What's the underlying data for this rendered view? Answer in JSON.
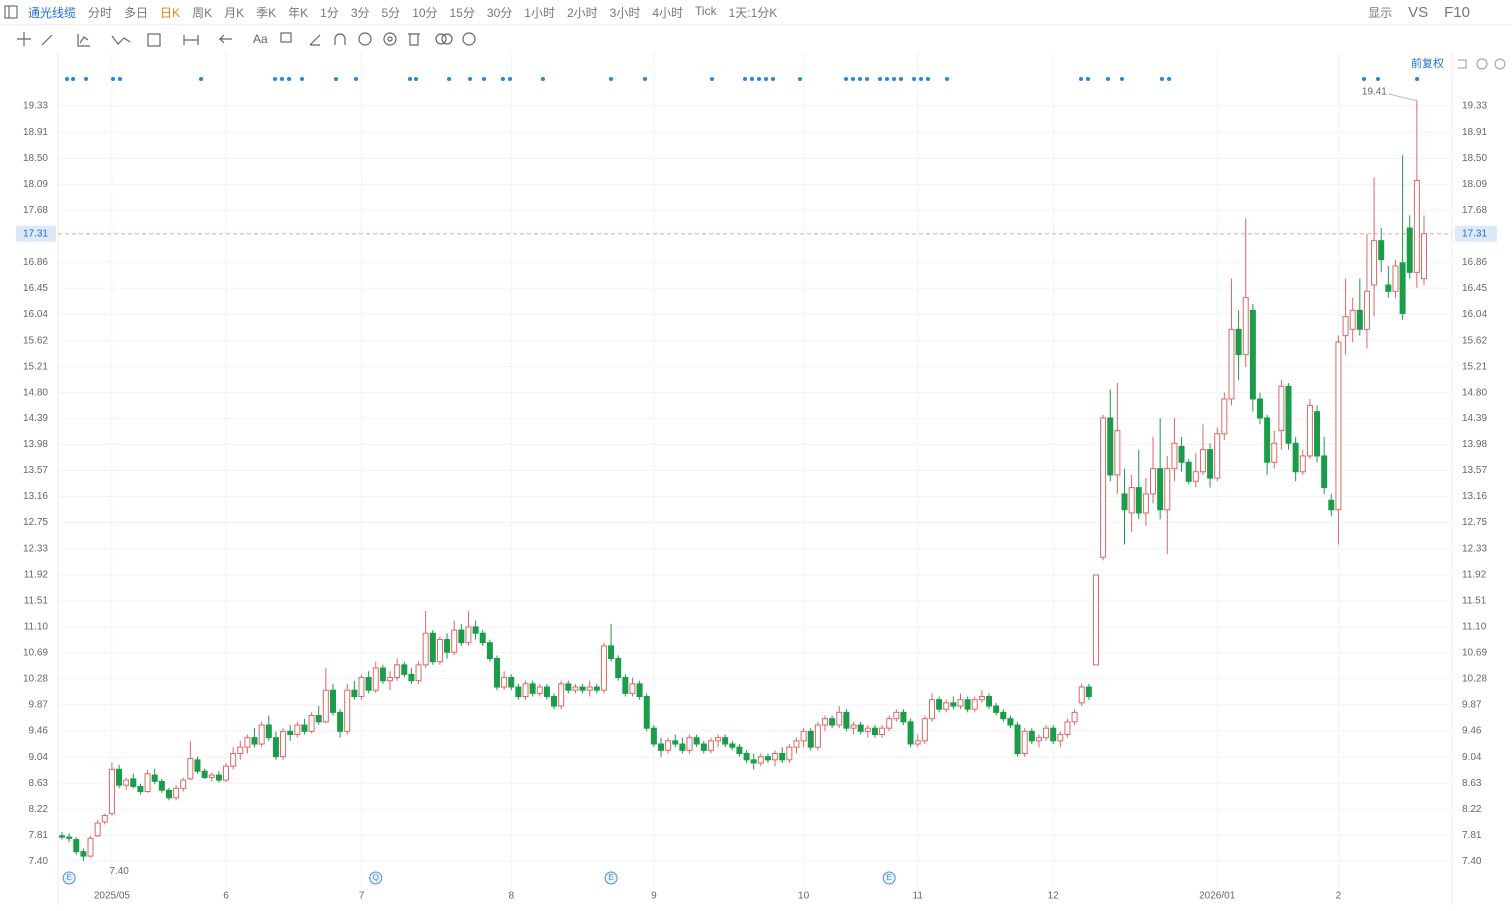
{
  "toolbar": {
    "stock": "通光线缆",
    "periods": [
      "分时",
      "多日",
      "日K",
      "周K",
      "月K",
      "季K",
      "年K",
      "1分",
      "3分",
      "5分",
      "10分",
      "15分",
      "30分",
      "1小时",
      "2小时",
      "3小时",
      "4小时",
      "Tick",
      "1天:1分K"
    ],
    "selected": 2,
    "right": [
      "显示",
      "VS",
      "F10"
    ]
  },
  "chart_data": {
    "type": "candlestick",
    "adjust_label": "前复权",
    "up_color": "#e06666",
    "down_color": "#1a9c4a",
    "grid": true,
    "ylim": [
      7.26,
      19.58
    ],
    "yticks": [
      {
        "value": 7.4,
        "label": "7.40"
      },
      7.81,
      8.22,
      8.63,
      9.04,
      9.46,
      9.87,
      10.28,
      10.69,
      {
        "value": 11.1,
        "label": "11.10"
      },
      11.51,
      11.92,
      12.33,
      12.75,
      13.16,
      13.57,
      13.98,
      14.39,
      {
        "value": 14.8,
        "label": "14.80"
      },
      15.21,
      15.62,
      16.04,
      16.45,
      16.86,
      17.68,
      18.09,
      {
        "value": 18.5,
        "label": "18.50"
      },
      18.91,
      19.33
    ],
    "last_price": 17.31,
    "high_mark": 19.41,
    "low_mark": {
      "value": 7.4,
      "label": "7.40"
    },
    "events": [
      "E",
      "Q",
      "E",
      "E"
    ],
    "categories": [
      null,
      null,
      null,
      null,
      null,
      null,
      null,
      "2025/05",
      null,
      null,
      null,
      null,
      null,
      null,
      null,
      null,
      null,
      null,
      null,
      null,
      null,
      null,
      null,
      "6",
      null,
      null,
      null,
      null,
      null,
      null,
      null,
      null,
      null,
      null,
      null,
      null,
      null,
      null,
      null,
      null,
      null,
      null,
      "7",
      null,
      null,
      null,
      null,
      null,
      null,
      null,
      null,
      null,
      null,
      null,
      null,
      null,
      null,
      null,
      null,
      null,
      null,
      null,
      null,
      "8",
      null,
      null,
      null,
      null,
      null,
      null,
      null,
      null,
      null,
      null,
      null,
      null,
      null,
      null,
      null,
      null,
      null,
      null,
      null,
      "9",
      null,
      null,
      null,
      null,
      null,
      null,
      null,
      null,
      null,
      null,
      null,
      null,
      null,
      null,
      null,
      null,
      null,
      null,
      null,
      null,
      "10",
      null,
      null,
      null,
      null,
      null,
      null,
      null,
      null,
      null,
      null,
      null,
      null,
      null,
      null,
      null,
      "11",
      null,
      null,
      null,
      null,
      null,
      null,
      null,
      null,
      null,
      null,
      null,
      null,
      null,
      null,
      null,
      null,
      null,
      null,
      "12",
      null,
      null,
      null,
      null,
      null,
      null,
      null,
      null,
      null,
      null,
      null,
      null,
      null,
      null,
      null,
      null,
      null,
      null,
      null,
      null,
      null,
      null,
      "2026/01",
      null,
      null,
      null,
      null,
      null,
      null,
      null,
      null,
      null,
      null,
      null,
      null,
      null,
      null,
      null,
      null,
      "2",
      null,
      null,
      null,
      null,
      null,
      null,
      null,
      null,
      null,
      null,
      null,
      null
    ],
    "ohlc": [
      [
        7.8,
        7.86,
        7.74,
        7.78
      ],
      [
        7.78,
        7.84,
        7.7,
        7.76
      ],
      [
        7.74,
        7.78,
        7.5,
        7.55
      ],
      [
        7.55,
        7.6,
        7.4,
        7.48
      ],
      [
        7.48,
        7.8,
        7.46,
        7.76
      ],
      [
        7.8,
        8.05,
        7.78,
        8.0
      ],
      [
        8.02,
        8.15,
        7.98,
        8.12
      ],
      [
        8.15,
        8.96,
        8.12,
        8.85
      ],
      [
        8.85,
        8.92,
        8.55,
        8.6
      ],
      [
        8.6,
        8.72,
        8.52,
        8.68
      ],
      [
        8.7,
        8.78,
        8.55,
        8.58
      ],
      [
        8.58,
        8.62,
        8.45,
        8.5
      ],
      [
        8.5,
        8.84,
        8.48,
        8.78
      ],
      [
        8.76,
        8.86,
        8.62,
        8.66
      ],
      [
        8.66,
        8.7,
        8.48,
        8.52
      ],
      [
        8.52,
        8.56,
        8.36,
        8.4
      ],
      [
        8.4,
        8.6,
        8.36,
        8.55
      ],
      [
        8.55,
        8.72,
        8.5,
        8.68
      ],
      [
        8.7,
        9.3,
        8.68,
        9.02
      ],
      [
        9.0,
        9.05,
        8.78,
        8.82
      ],
      [
        8.82,
        8.86,
        8.7,
        8.72
      ],
      [
        8.72,
        8.8,
        8.66,
        8.76
      ],
      [
        8.76,
        8.82,
        8.64,
        8.68
      ],
      [
        8.68,
        8.95,
        8.65,
        8.9
      ],
      [
        8.9,
        9.2,
        8.85,
        9.1
      ],
      [
        9.1,
        9.3,
        9.0,
        9.2
      ],
      [
        9.2,
        9.4,
        9.1,
        9.35
      ],
      [
        9.35,
        9.5,
        9.2,
        9.25
      ],
      [
        9.25,
        9.6,
        9.2,
        9.55
      ],
      [
        9.55,
        9.7,
        9.3,
        9.35
      ],
      [
        9.35,
        9.45,
        9.0,
        9.05
      ],
      [
        9.05,
        9.5,
        9.0,
        9.45
      ],
      [
        9.45,
        9.55,
        9.3,
        9.4
      ],
      [
        9.4,
        9.6,
        9.35,
        9.55
      ],
      [
        9.55,
        9.65,
        9.4,
        9.45
      ],
      [
        9.45,
        9.75,
        9.42,
        9.7
      ],
      [
        9.7,
        9.85,
        9.55,
        9.6
      ],
      [
        9.6,
        10.45,
        9.58,
        10.1
      ],
      [
        10.1,
        10.2,
        9.7,
        9.75
      ],
      [
        9.75,
        9.8,
        9.35,
        9.45
      ],
      [
        9.45,
        10.2,
        9.4,
        10.1
      ],
      [
        10.1,
        10.25,
        9.95,
        10.0
      ],
      [
        10.0,
        10.35,
        9.95,
        10.3
      ],
      [
        10.3,
        10.4,
        10.05,
        10.1
      ],
      [
        10.1,
        10.55,
        10.05,
        10.45
      ],
      [
        10.45,
        10.5,
        10.2,
        10.25
      ],
      [
        10.25,
        10.4,
        10.1,
        10.3
      ],
      [
        10.3,
        10.6,
        10.25,
        10.5
      ],
      [
        10.5,
        10.55,
        10.3,
        10.35
      ],
      [
        10.35,
        10.45,
        10.2,
        10.25
      ],
      [
        10.25,
        10.55,
        10.2,
        10.5
      ],
      [
        10.5,
        11.35,
        10.45,
        11.0
      ],
      [
        11.0,
        11.05,
        10.5,
        10.55
      ],
      [
        10.55,
        10.95,
        10.5,
        10.9
      ],
      [
        10.9,
        11.0,
        10.6,
        10.7
      ],
      [
        10.7,
        11.2,
        10.65,
        11.05
      ],
      [
        11.05,
        11.15,
        10.8,
        10.85
      ],
      [
        10.85,
        11.35,
        10.8,
        11.1
      ],
      [
        11.1,
        11.2,
        10.9,
        11.0
      ],
      [
        11.0,
        11.05,
        10.8,
        10.85
      ],
      [
        10.85,
        10.9,
        10.55,
        10.6
      ],
      [
        10.6,
        10.65,
        10.1,
        10.15
      ],
      [
        10.15,
        10.4,
        10.1,
        10.3
      ],
      [
        10.3,
        10.35,
        10.1,
        10.15
      ],
      [
        10.15,
        10.2,
        9.95,
        10.0
      ],
      [
        10.0,
        10.25,
        9.95,
        10.2
      ],
      [
        10.2,
        10.25,
        10.0,
        10.05
      ],
      [
        10.05,
        10.2,
        10.0,
        10.15
      ],
      [
        10.15,
        10.2,
        9.95,
        10.0
      ],
      [
        10.0,
        10.05,
        9.8,
        9.85
      ],
      [
        9.85,
        10.25,
        9.8,
        10.2
      ],
      [
        10.2,
        10.25,
        10.05,
        10.1
      ],
      [
        10.1,
        10.2,
        10.05,
        10.15
      ],
      [
        10.15,
        10.2,
        10.05,
        10.1
      ],
      [
        10.1,
        10.25,
        10.0,
        10.15
      ],
      [
        10.15,
        10.2,
        10.05,
        10.1
      ],
      [
        10.1,
        10.85,
        10.05,
        10.8
      ],
      [
        10.8,
        11.15,
        10.55,
        10.6
      ],
      [
        10.6,
        10.65,
        10.25,
        10.3
      ],
      [
        10.3,
        10.35,
        10.0,
        10.05
      ],
      [
        10.05,
        10.3,
        10.0,
        10.2
      ],
      [
        10.2,
        10.25,
        9.95,
        10.0
      ],
      [
        10.0,
        10.05,
        9.45,
        9.5
      ],
      [
        9.5,
        9.55,
        9.2,
        9.25
      ],
      [
        9.25,
        9.35,
        9.05,
        9.15
      ],
      [
        9.15,
        9.35,
        9.1,
        9.3
      ],
      [
        9.3,
        9.4,
        9.2,
        9.25
      ],
      [
        9.25,
        9.35,
        9.1,
        9.15
      ],
      [
        9.15,
        9.4,
        9.1,
        9.35
      ],
      [
        9.35,
        9.4,
        9.2,
        9.25
      ],
      [
        9.25,
        9.3,
        9.1,
        9.15
      ],
      [
        9.15,
        9.35,
        9.1,
        9.3
      ],
      [
        9.3,
        9.4,
        9.2,
        9.35
      ],
      [
        9.35,
        9.4,
        9.2,
        9.25
      ],
      [
        9.25,
        9.3,
        9.15,
        9.2
      ],
      [
        9.2,
        9.25,
        9.05,
        9.1
      ],
      [
        9.1,
        9.15,
        8.95,
        9.0
      ],
      [
        9.0,
        9.1,
        8.85,
        8.95
      ],
      [
        8.95,
        9.1,
        8.9,
        9.05
      ],
      [
        9.05,
        9.1,
        8.95,
        9.0
      ],
      [
        9.0,
        9.15,
        8.9,
        9.1
      ],
      [
        9.1,
        9.2,
        8.95,
        9.0
      ],
      [
        9.0,
        9.25,
        8.95,
        9.2
      ],
      [
        9.2,
        9.35,
        9.1,
        9.3
      ],
      [
        9.3,
        9.5,
        9.2,
        9.45
      ],
      [
        9.45,
        9.5,
        9.15,
        9.2
      ],
      [
        9.2,
        9.6,
        9.15,
        9.55
      ],
      [
        9.55,
        9.7,
        9.45,
        9.65
      ],
      [
        9.65,
        9.7,
        9.5,
        9.55
      ],
      [
        9.55,
        9.85,
        9.5,
        9.75
      ],
      [
        9.75,
        9.8,
        9.45,
        9.5
      ],
      [
        9.5,
        9.6,
        9.4,
        9.55
      ],
      [
        9.55,
        9.6,
        9.4,
        9.45
      ],
      [
        9.45,
        9.55,
        9.35,
        9.5
      ],
      [
        9.5,
        9.55,
        9.35,
        9.4
      ],
      [
        9.4,
        9.55,
        9.35,
        9.5
      ],
      [
        9.5,
        9.7,
        9.45,
        9.65
      ],
      [
        9.65,
        9.8,
        9.6,
        9.75
      ],
      [
        9.75,
        9.8,
        9.55,
        9.6
      ],
      [
        9.6,
        9.65,
        9.2,
        9.25
      ],
      [
        9.25,
        9.4,
        9.2,
        9.3
      ],
      [
        9.3,
        9.7,
        9.25,
        9.65
      ],
      [
        9.65,
        10.05,
        9.6,
        9.95
      ],
      [
        9.95,
        10.0,
        9.75,
        9.8
      ],
      [
        9.8,
        9.95,
        9.75,
        9.9
      ],
      [
        9.9,
        10.0,
        9.8,
        9.85
      ],
      [
        9.85,
        10.05,
        9.8,
        9.95
      ],
      [
        9.95,
        10.0,
        9.75,
        9.8
      ],
      [
        9.8,
        10.0,
        9.75,
        9.95
      ],
      [
        9.95,
        10.1,
        9.9,
        10.0
      ],
      [
        10.0,
        10.05,
        9.8,
        9.85
      ],
      [
        9.85,
        9.9,
        9.7,
        9.75
      ],
      [
        9.75,
        9.8,
        9.6,
        9.65
      ],
      [
        9.65,
        9.7,
        9.5,
        9.55
      ],
      [
        9.55,
        9.6,
        9.05,
        9.1
      ],
      [
        9.1,
        9.5,
        9.05,
        9.45
      ],
      [
        9.45,
        9.5,
        9.25,
        9.3
      ],
      [
        9.3,
        9.4,
        9.2,
        9.35
      ],
      [
        9.35,
        9.55,
        9.3,
        9.5
      ],
      [
        9.5,
        9.55,
        9.25,
        9.3
      ],
      [
        9.3,
        9.45,
        9.2,
        9.4
      ],
      [
        9.4,
        9.65,
        9.35,
        9.6
      ],
      [
        9.6,
        9.8,
        9.55,
        9.75
      ],
      [
        9.9,
        10.2,
        9.85,
        10.15
      ],
      [
        10.15,
        10.2,
        9.95,
        10.0
      ],
      [
        10.5,
        11.92,
        10.5,
        11.92
      ],
      [
        12.2,
        14.45,
        12.15,
        14.4
      ],
      [
        14.4,
        14.85,
        13.4,
        13.5
      ],
      [
        13.5,
        14.95,
        13.2,
        14.2
      ],
      [
        13.2,
        13.6,
        12.4,
        12.95
      ],
      [
        12.9,
        13.5,
        12.6,
        13.3
      ],
      [
        13.3,
        13.9,
        12.8,
        12.9
      ],
      [
        12.9,
        13.45,
        12.7,
        13.2
      ],
      [
        13.2,
        14.1,
        13.05,
        13.6
      ],
      [
        13.6,
        14.4,
        12.8,
        12.95
      ],
      [
        12.95,
        13.8,
        12.25,
        13.6
      ],
      [
        13.6,
        14.4,
        13.4,
        14.0
      ],
      [
        13.95,
        14.1,
        13.55,
        13.7
      ],
      [
        13.7,
        13.75,
        13.35,
        13.4
      ],
      [
        13.4,
        13.85,
        13.3,
        13.55
      ],
      [
        13.55,
        14.3,
        13.5,
        13.9
      ],
      [
        13.9,
        14.0,
        13.3,
        13.45
      ],
      [
        13.45,
        14.25,
        13.4,
        14.15
      ],
      [
        14.15,
        14.8,
        14.05,
        14.7
      ],
      [
        14.7,
        16.6,
        14.6,
        15.8
      ],
      [
        15.8,
        16.1,
        15.0,
        15.4
      ],
      [
        15.4,
        17.55,
        15.2,
        16.3
      ],
      [
        16.1,
        16.2,
        14.5,
        14.7
      ],
      [
        14.7,
        14.8,
        14.3,
        14.4
      ],
      [
        14.4,
        14.45,
        13.5,
        13.7
      ],
      [
        13.7,
        14.2,
        13.6,
        14.0
      ],
      [
        14.2,
        15.0,
        13.9,
        14.9
      ],
      [
        14.9,
        14.95,
        13.9,
        14.0
      ],
      [
        14.0,
        14.1,
        13.4,
        13.55
      ],
      [
        13.55,
        13.9,
        13.5,
        13.8
      ],
      [
        13.8,
        14.7,
        13.75,
        14.6
      ],
      [
        14.5,
        14.6,
        13.7,
        13.8
      ],
      [
        13.8,
        14.1,
        13.2,
        13.3
      ],
      [
        13.1,
        13.2,
        12.85,
        12.95
      ],
      [
        12.95,
        15.7,
        12.4,
        15.6
      ],
      [
        15.7,
        16.6,
        15.4,
        16.0
      ],
      [
        15.8,
        16.3,
        15.6,
        16.1
      ],
      [
        16.1,
        16.6,
        15.7,
        15.8
      ],
      [
        15.8,
        17.3,
        15.5,
        16.4
      ],
      [
        16.5,
        18.2,
        16.0,
        17.2
      ],
      [
        17.2,
        17.4,
        16.7,
        16.9
      ],
      [
        16.5,
        16.8,
        16.3,
        16.4
      ],
      [
        16.4,
        16.9,
        16.3,
        16.8
      ],
      [
        16.85,
        18.55,
        15.95,
        16.05
      ],
      [
        17.4,
        17.6,
        16.6,
        16.7
      ],
      [
        16.7,
        19.41,
        16.45,
        18.15
      ],
      [
        16.6,
        17.6,
        16.5,
        17.31
      ]
    ]
  }
}
